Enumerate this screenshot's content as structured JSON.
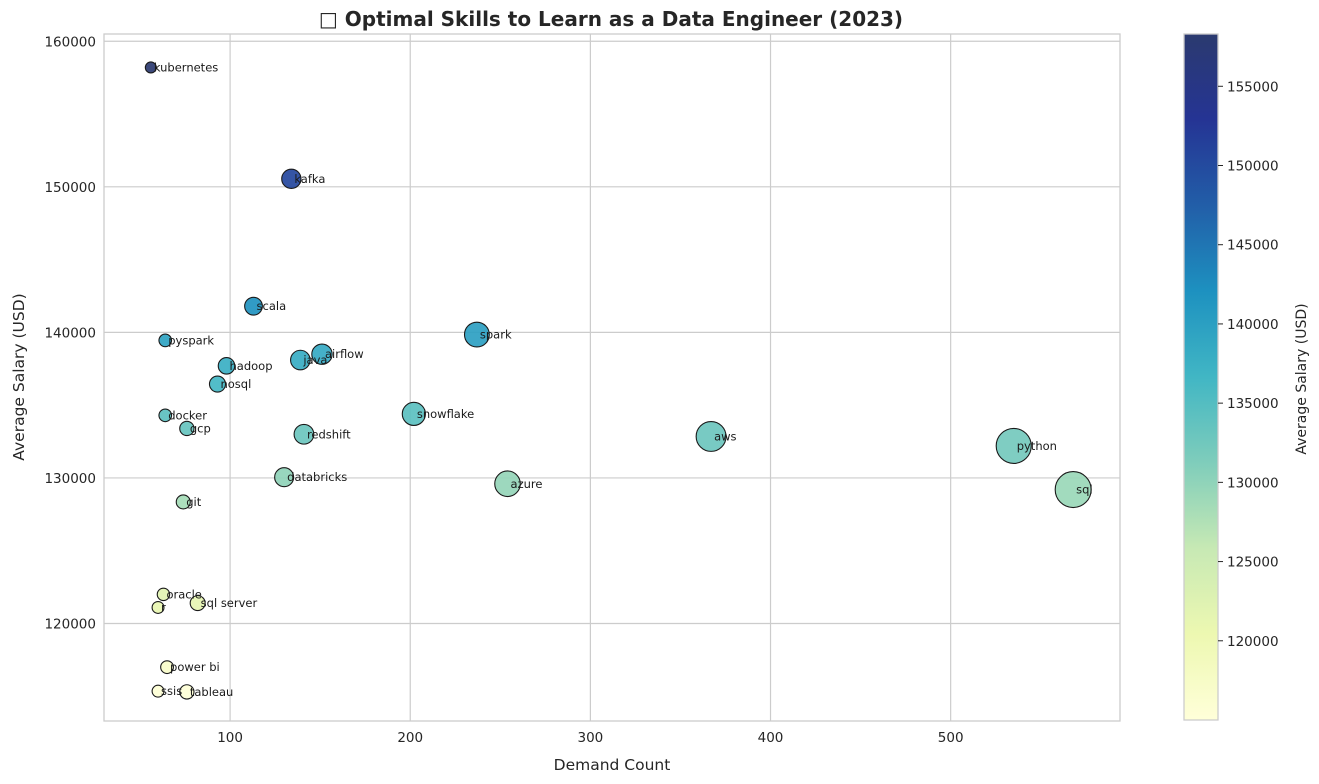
{
  "chart_data": {
    "type": "scatter",
    "title": "□ Optimal Skills to Learn as a Data Engineer (2023)",
    "xlabel": "Demand Count",
    "ylabel": "Average Salary (USD)",
    "xlim": [
      30,
      594
    ],
    "ylim": [
      113300,
      160500
    ],
    "x_ticks": [
      100,
      200,
      300,
      400,
      500
    ],
    "y_ticks": [
      120000,
      130000,
      140000,
      150000,
      160000
    ],
    "grid": true,
    "colorbar": {
      "label": "Average Salary (USD)",
      "range": [
        115000,
        158300
      ],
      "ticks": [
        120000,
        125000,
        130000,
        135000,
        140000,
        145000,
        150000,
        155000
      ],
      "colormap": "YlGnBu",
      "colors": [
        "#ffffd9",
        "#edf8b1",
        "#c7e9b4",
        "#7fcdbb",
        "#41b6c4",
        "#1d91c0",
        "#225ea8",
        "#253494",
        "#2b3a6f"
      ]
    },
    "points": [
      {
        "label": "kubernetes",
        "x": 56,
        "y": 158200
      },
      {
        "label": "kafka",
        "x": 134,
        "y": 150550
      },
      {
        "label": "scala",
        "x": 113,
        "y": 141800
      },
      {
        "label": "pyspark",
        "x": 64,
        "y": 139450
      },
      {
        "label": "spark",
        "x": 237,
        "y": 139850
      },
      {
        "label": "airflow",
        "x": 151,
        "y": 138500
      },
      {
        "label": "java",
        "x": 139,
        "y": 138100
      },
      {
        "label": "hadoop",
        "x": 98,
        "y": 137700
      },
      {
        "label": "nosql",
        "x": 93,
        "y": 136450
      },
      {
        "label": "snowflake",
        "x": 202,
        "y": 134400
      },
      {
        "label": "docker",
        "x": 64,
        "y": 134300
      },
      {
        "label": "gcp",
        "x": 76,
        "y": 133400
      },
      {
        "label": "redshift",
        "x": 141,
        "y": 133000
      },
      {
        "label": "aws",
        "x": 367,
        "y": 132850
      },
      {
        "label": "python",
        "x": 535,
        "y": 132200
      },
      {
        "label": "databricks",
        "x": 130,
        "y": 130050
      },
      {
        "label": "azure",
        "x": 254,
        "y": 129600
      },
      {
        "label": "sql",
        "x": 568,
        "y": 129200
      },
      {
        "label": "git",
        "x": 74,
        "y": 128350
      },
      {
        "label": "oracle",
        "x": 63,
        "y": 122000
      },
      {
        "label": "r",
        "x": 60,
        "y": 121100
      },
      {
        "label": "sql server",
        "x": 82,
        "y": 121400
      },
      {
        "label": "power bi",
        "x": 65,
        "y": 117000
      },
      {
        "label": "ssis",
        "x": 60,
        "y": 115350
      },
      {
        "label": "tableau",
        "x": 76,
        "y": 115300
      }
    ]
  }
}
